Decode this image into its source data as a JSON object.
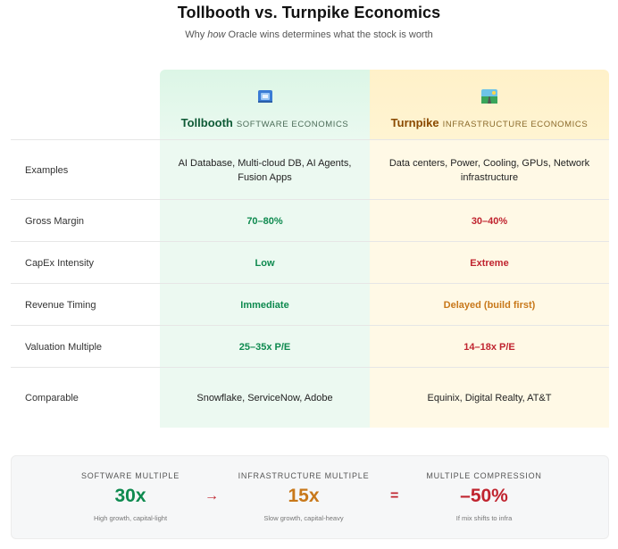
{
  "title": "Tollbooth vs. Turnpike Economics",
  "subtitle_prefix": "Why",
  "subtitle_emph": "how",
  "subtitle_suffix": "Oracle wins determines what the stock is worth",
  "columns": {
    "tollbooth": {
      "name": "Tollbooth",
      "sub": "SOFTWARE ECONOMICS",
      "icon": "toll-card-icon"
    },
    "turnpike": {
      "name": "Turnpike",
      "sub": "INFRASTRUCTURE ECONOMICS",
      "icon": "road-landscape-icon"
    }
  },
  "rows": [
    {
      "label": "Examples",
      "tollbooth": "AI Database, Multi-cloud DB, AI Agents, Fusion Apps",
      "turnpike": "Data centers, Power, Cooling, GPUs, Network infrastructure"
    },
    {
      "label": "Gross Margin",
      "tollbooth": "70–80%",
      "turnpike": "30–40%"
    },
    {
      "label": "CapEx Intensity",
      "tollbooth": "Low",
      "turnpike": "Extreme"
    },
    {
      "label": "Revenue Timing",
      "tollbooth": "Immediate",
      "turnpike": "Delayed (build first)"
    },
    {
      "label": "Valuation Multiple",
      "tollbooth": "25–35x P/E",
      "turnpike": "14–18x P/E"
    },
    {
      "label": "Comparable",
      "tollbooth": "Snowflake, ServiceNow, Adobe",
      "turnpike": "Equinix, Digital Realty, AT&T"
    }
  ],
  "summary": {
    "software": {
      "label": "SOFTWARE MULTIPLE",
      "value": "30x",
      "note": "High growth, capital-light"
    },
    "arrow": "→",
    "infrastructure": {
      "label": "INFRASTRUCTURE MULTIPLE",
      "value": "15x",
      "note": "Slow growth, capital-heavy"
    },
    "equals": "=",
    "compression": {
      "label": "MULTIPLE COMPRESSION",
      "value": "–50%",
      "note": "If mix shifts to infra"
    }
  },
  "colors": {
    "green": "#0e8a4f",
    "red": "#c0242f",
    "orange": "#c8781a"
  }
}
